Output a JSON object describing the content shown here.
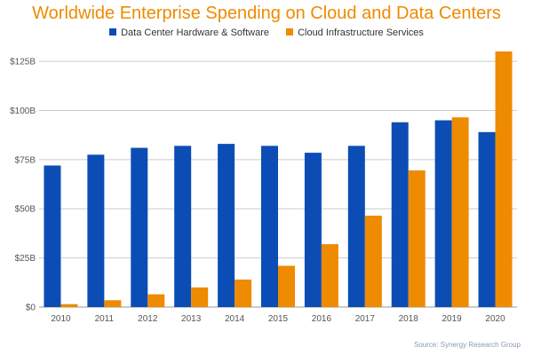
{
  "title": "Worldwide Enterprise Spending on Cloud and Data Centers",
  "source": "Source: Synergy Research Group",
  "colors": {
    "series_1": "#0B4DB5",
    "series_2": "#EE8B00",
    "grid": "#cccccc",
    "axis": "#999999"
  },
  "chart_data": {
    "type": "bar",
    "title": "Worldwide Enterprise Spending on Cloud and Data Centers",
    "xlabel": "",
    "ylabel": "",
    "categories": [
      "2010",
      "2011",
      "2012",
      "2013",
      "2014",
      "2015",
      "2016",
      "2017",
      "2018",
      "2019",
      "2020"
    ],
    "series": [
      {
        "name": "Data Center Hardware & Software",
        "values": [
          72,
          77.5,
          81,
          82,
          83,
          82,
          78.5,
          82,
          94,
          95,
          89
        ]
      },
      {
        "name": "Cloud Infrastructure Services",
        "values": [
          1.5,
          3.5,
          6.5,
          10,
          14,
          21,
          32,
          46.5,
          69.5,
          96.5,
          130
        ]
      }
    ],
    "ylim": [
      0,
      130
    ],
    "yticks": [
      0,
      25,
      50,
      75,
      100,
      125
    ],
    "ytick_labels": [
      "$0",
      "$25B",
      "$50B",
      "$75B",
      "$100B",
      "$125B"
    ],
    "grid": true,
    "legend_position": "top"
  }
}
